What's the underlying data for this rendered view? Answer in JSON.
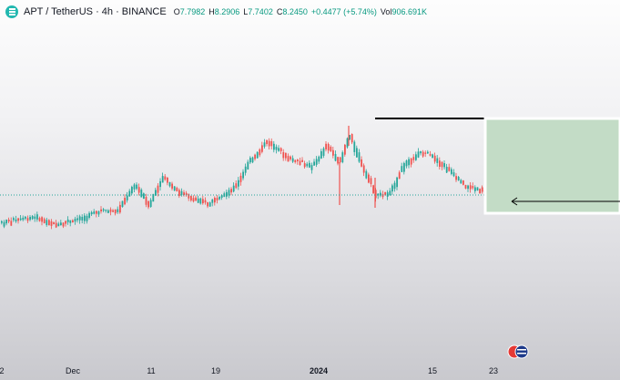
{
  "header": {
    "symbol": "APT / TetherUS · 4h · BINANCE",
    "o_label": "O",
    "o_value": "7.7982",
    "h_label": "H",
    "h_value": "8.2906",
    "l_label": "L",
    "l_value": "7.7402",
    "c_label": "C",
    "c_value": "8.2450",
    "change": "+0.4477 (+5.74%)",
    "vol_label": "Vol",
    "vol_value": "906.691K"
  },
  "x_axis": {
    "labels": [
      "2",
      "Dec",
      "11",
      "19",
      "2024",
      "15",
      "23"
    ],
    "bold_label": "2024"
  },
  "colors": {
    "up": "#26a69a",
    "down": "#ef5350",
    "zone_fill": "#c3dcc6",
    "zone_border": "#ffffff",
    "price_line": "#26a69a",
    "resistance_line": "#000000"
  },
  "chart_data": {
    "type": "candlestick",
    "title": "APT / TetherUS · 4h · BINANCE",
    "last_close": 8.245,
    "annotations": [
      "horizontal-resistance-line",
      "green-target-zone",
      "arrow-pointing-to-price"
    ],
    "icons": [
      "flag-icon"
    ]
  }
}
